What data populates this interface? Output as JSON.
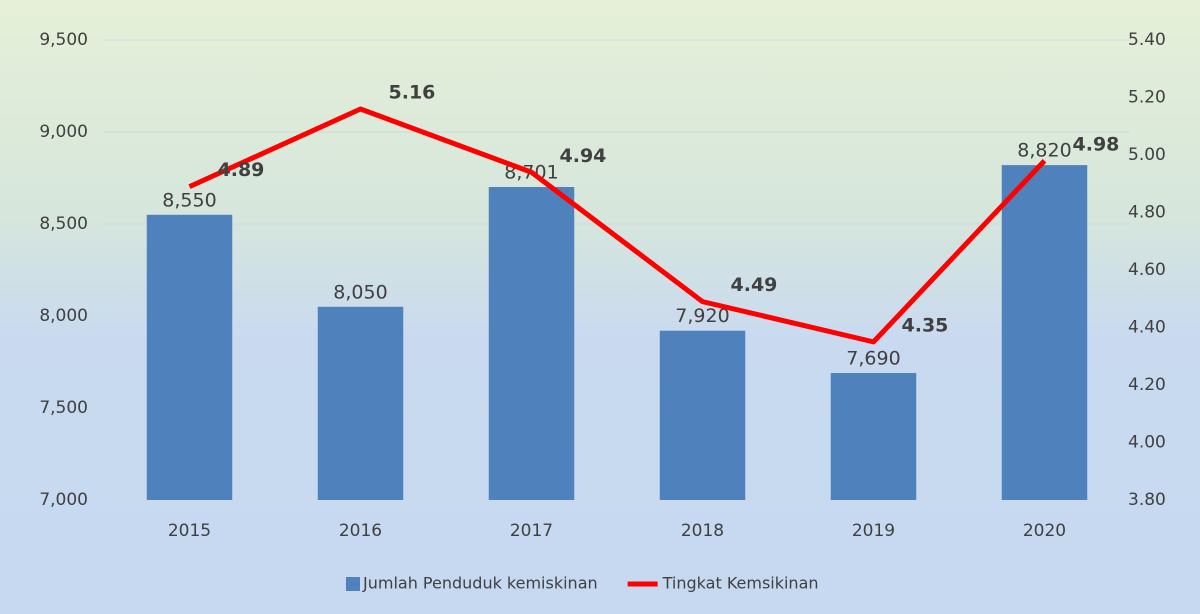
{
  "chart_data": {
    "type": "bar-line",
    "categories": [
      "2015",
      "2016",
      "2017",
      "2018",
      "2019",
      "2020"
    ],
    "series": [
      {
        "name": "Jumlah Penduduk kemiskinan",
        "type": "bar",
        "color": "#4f81bd",
        "values": [
          8550,
          8050,
          8701,
          7920,
          7690,
          8820
        ],
        "value_labels": [
          "8,550",
          "8,050",
          "8,701",
          "7,920",
          "7,690",
          "8,820"
        ]
      },
      {
        "name": "Tingkat Kemsikinan",
        "type": "line",
        "axis": "y2",
        "color": "#ff0000",
        "values": [
          4.89,
          5.16,
          4.94,
          4.49,
          4.35,
          4.98
        ]
      }
    ],
    "ylim": [
      7000,
      9500
    ],
    "yticks": [
      {
        "value": 7000,
        "label": "7,000"
      },
      {
        "value": 7500,
        "label": "7,500"
      },
      {
        "value": 8000,
        "label": "8,000"
      },
      {
        "value": 8500,
        "label": "8,500"
      },
      {
        "value": 9000,
        "label": "9,000"
      },
      {
        "value": 9500,
        "label": "9,500"
      }
    ],
    "y2lim": [
      3.8,
      5.4
    ],
    "y2ticks": [
      {
        "value": 3.8,
        "label": "3.80"
      },
      {
        "value": 4.0,
        "label": "4.00"
      },
      {
        "value": 4.2,
        "label": "4.20"
      },
      {
        "value": 4.4,
        "label": "4.40"
      },
      {
        "value": 4.6,
        "label": "4.60"
      },
      {
        "value": 4.8,
        "label": "4.80"
      },
      {
        "value": 5.0,
        "label": "5.00"
      },
      {
        "value": 5.2,
        "label": "5.20"
      },
      {
        "value": 5.4,
        "label": "5.40"
      }
    ],
    "grid": true,
    "legend": "bottom"
  }
}
